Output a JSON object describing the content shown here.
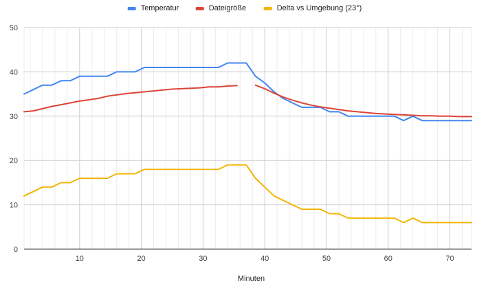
{
  "chart_data": {
    "type": "line",
    "title": "",
    "xlabel": "Minuten",
    "ylabel": "",
    "xlim": [
      1,
      73.5
    ],
    "ylim": [
      0,
      50
    ],
    "x_ticks": [
      10,
      20,
      30,
      40,
      50,
      60,
      70
    ],
    "y_ticks": [
      0,
      10,
      20,
      30,
      40,
      50
    ],
    "grid": true,
    "legend": "top-center",
    "series": [
      {
        "name": "Temperatur",
        "color": "#4285F4",
        "points": [
          [
            1,
            35
          ],
          [
            2.5,
            36
          ],
          [
            4,
            37
          ],
          [
            5.5,
            37
          ],
          [
            7,
            38
          ],
          [
            8.5,
            38
          ],
          [
            10,
            39
          ],
          [
            11.5,
            39
          ],
          [
            13,
            39
          ],
          [
            14.5,
            39
          ],
          [
            16,
            40
          ],
          [
            17.5,
            40
          ],
          [
            19,
            40
          ],
          [
            20.5,
            41
          ],
          [
            22,
            41
          ],
          [
            23.5,
            41
          ],
          [
            25,
            41
          ],
          [
            26.5,
            41
          ],
          [
            28,
            41
          ],
          [
            29.5,
            41
          ],
          [
            31,
            41
          ],
          [
            32.5,
            41
          ],
          [
            34,
            42
          ],
          [
            35.5,
            42
          ],
          [
            37,
            42
          ],
          [
            38.5,
            39
          ],
          [
            40,
            37.5
          ],
          [
            41.5,
            35.5
          ],
          [
            43,
            34
          ],
          [
            44.5,
            33
          ],
          [
            46,
            32
          ],
          [
            47.5,
            32
          ],
          [
            49,
            32
          ],
          [
            50.5,
            31
          ],
          [
            52,
            31
          ],
          [
            53.5,
            30
          ],
          [
            55,
            30
          ],
          [
            56.5,
            30
          ],
          [
            58,
            30
          ],
          [
            59.5,
            30
          ],
          [
            61,
            30
          ],
          [
            62.5,
            29
          ],
          [
            64,
            30
          ],
          [
            65.5,
            29
          ],
          [
            67,
            29
          ],
          [
            68.5,
            29
          ],
          [
            70,
            29
          ],
          [
            71.5,
            29
          ],
          [
            73.5,
            29
          ]
        ]
      },
      {
        "name": "Dateigröße",
        "color": "#DB4437",
        "segments": [
          [
            [
              1,
              31
            ],
            [
              2.5,
              31.2
            ],
            [
              4,
              31.7
            ],
            [
              5.5,
              32.2
            ],
            [
              7,
              32.6
            ],
            [
              8.5,
              33
            ],
            [
              10,
              33.4
            ],
            [
              11.5,
              33.7
            ],
            [
              13,
              34
            ],
            [
              14.5,
              34.5
            ],
            [
              16,
              34.8
            ],
            [
              17.5,
              35.1
            ],
            [
              19,
              35.3
            ],
            [
              20.5,
              35.5
            ],
            [
              22,
              35.7
            ],
            [
              23.5,
              35.9
            ],
            [
              25,
              36.1
            ],
            [
              26.5,
              36.2
            ],
            [
              28,
              36.3
            ],
            [
              29.5,
              36.4
            ],
            [
              31,
              36.6
            ],
            [
              32.5,
              36.6
            ],
            [
              34,
              36.8
            ],
            [
              35.5,
              36.9
            ]
          ],
          [
            [
              38.5,
              37
            ],
            [
              40,
              36.2
            ],
            [
              41.5,
              35.2
            ],
            [
              43,
              34.3
            ],
            [
              44.5,
              33.6
            ],
            [
              46,
              33
            ],
            [
              47.5,
              32.5
            ],
            [
              49,
              32.1
            ],
            [
              50.5,
              31.8
            ],
            [
              52,
              31.5
            ],
            [
              53.5,
              31.2
            ],
            [
              55,
              31
            ],
            [
              56.5,
              30.8
            ],
            [
              58,
              30.6
            ],
            [
              59.5,
              30.5
            ],
            [
              61,
              30.4
            ],
            [
              62.5,
              30.3
            ],
            [
              64,
              30.2
            ],
            [
              65.5,
              30.1
            ],
            [
              67,
              30.1
            ],
            [
              68.5,
              30
            ],
            [
              70,
              30
            ],
            [
              71.5,
              29.9
            ],
            [
              73.5,
              29.9
            ]
          ]
        ]
      },
      {
        "name": "Delta vs Umgebung (23°)",
        "color": "#F4B400",
        "points": [
          [
            1,
            12
          ],
          [
            2.5,
            13
          ],
          [
            4,
            14
          ],
          [
            5.5,
            14
          ],
          [
            7,
            15
          ],
          [
            8.5,
            15
          ],
          [
            10,
            16
          ],
          [
            11.5,
            16
          ],
          [
            13,
            16
          ],
          [
            14.5,
            16
          ],
          [
            16,
            17
          ],
          [
            17.5,
            17
          ],
          [
            19,
            17
          ],
          [
            20.5,
            18
          ],
          [
            22,
            18
          ],
          [
            23.5,
            18
          ],
          [
            25,
            18
          ],
          [
            26.5,
            18
          ],
          [
            28,
            18
          ],
          [
            29.5,
            18
          ],
          [
            31,
            18
          ],
          [
            32.5,
            18
          ],
          [
            34,
            19
          ],
          [
            35.5,
            19
          ],
          [
            37,
            19
          ],
          [
            38.5,
            16
          ],
          [
            40,
            14
          ],
          [
            41.5,
            12
          ],
          [
            43,
            11
          ],
          [
            44.5,
            10
          ],
          [
            46,
            9
          ],
          [
            47.5,
            9
          ],
          [
            49,
            9
          ],
          [
            50.5,
            8
          ],
          [
            52,
            8
          ],
          [
            53.5,
            7
          ],
          [
            55,
            7
          ],
          [
            56.5,
            7
          ],
          [
            58,
            7
          ],
          [
            59.5,
            7
          ],
          [
            61,
            7
          ],
          [
            62.5,
            6
          ],
          [
            64,
            7
          ],
          [
            65.5,
            6
          ],
          [
            67,
            6
          ],
          [
            68.5,
            6
          ],
          [
            70,
            6
          ],
          [
            71.5,
            6
          ],
          [
            73.5,
            6
          ]
        ]
      }
    ]
  }
}
